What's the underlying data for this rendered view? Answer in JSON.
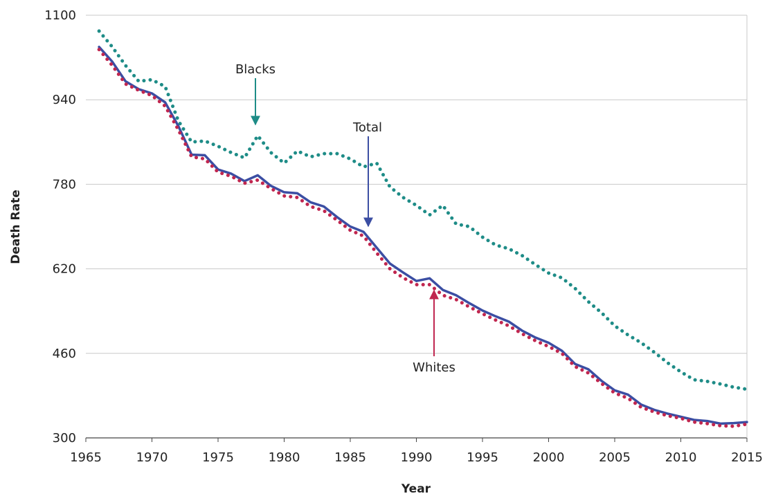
{
  "chart_data": {
    "type": "line",
    "xlabel": "Year",
    "ylabel": "Death Rate",
    "xlim": [
      1965,
      2015
    ],
    "ylim": [
      300,
      1100
    ],
    "x_ticks": [
      "1965",
      "1970",
      "1975",
      "1980",
      "1985",
      "1990",
      "1995",
      "2000",
      "2005",
      "2010",
      "2015"
    ],
    "y_ticks": [
      "300",
      "460",
      "620",
      "780",
      "940",
      "1100"
    ],
    "grid": "horizontal",
    "x": [
      1966,
      1967,
      1968,
      1969,
      1970,
      1971,
      1972,
      1973,
      1974,
      1975,
      1976,
      1977,
      1978,
      1979,
      1980,
      1981,
      1982,
      1983,
      1984,
      1985,
      1986,
      1987,
      1988,
      1989,
      1990,
      1991,
      1992,
      1993,
      1994,
      1995,
      1996,
      1997,
      1998,
      1999,
      2000,
      2001,
      2002,
      2003,
      2004,
      2005,
      2006,
      2007,
      2008,
      2009,
      2010,
      2011,
      2012,
      2013,
      2014,
      2015
    ],
    "series": [
      {
        "name": "Blacks",
        "color": "#1e8c87",
        "style": "dotted",
        "values": [
          1070,
          1040,
          1005,
          975,
          978,
          965,
          900,
          860,
          862,
          852,
          840,
          830,
          872,
          840,
          820,
          843,
          832,
          838,
          838,
          828,
          813,
          820,
          775,
          755,
          740,
          722,
          740,
          705,
          700,
          680,
          665,
          658,
          645,
          628,
          612,
          603,
          583,
          558,
          537,
          512,
          495,
          480,
          462,
          442,
          425,
          410,
          407,
          402,
          396,
          392
        ]
      },
      {
        "name": "Total",
        "color": "#3b4ea3",
        "style": "solid",
        "values": [
          1040,
          1012,
          975,
          960,
          952,
          935,
          890,
          836,
          835,
          808,
          800,
          786,
          797,
          777,
          765,
          763,
          746,
          738,
          718,
          700,
          690,
          660,
          630,
          613,
          597,
          602,
          580,
          570,
          555,
          541,
          530,
          520,
          503,
          490,
          480,
          465,
          440,
          430,
          408,
          390,
          382,
          363,
          353,
          346,
          340,
          334,
          332,
          327,
          328,
          330
        ]
      },
      {
        "name": "Whites",
        "color": "#c0264f",
        "style": "dotted",
        "values": [
          1035,
          1005,
          970,
          958,
          948,
          928,
          883,
          832,
          828,
          803,
          795,
          782,
          788,
          772,
          758,
          755,
          738,
          730,
          712,
          693,
          682,
          650,
          620,
          603,
          590,
          590,
          570,
          562,
          548,
          535,
          523,
          512,
          497,
          484,
          473,
          460,
          435,
          423,
          403,
          385,
          375,
          358,
          349,
          342,
          337,
          330,
          327,
          323,
          322,
          326
        ]
      }
    ],
    "annotations": [
      {
        "text": "Blacks",
        "points_to": {
          "x": 1979,
          "y": 872
        }
      },
      {
        "text": "Total",
        "points_to": {
          "x": 1988,
          "y": 690
        }
      },
      {
        "text": "Whites",
        "points_to": {
          "x": 1993,
          "y": 590
        }
      }
    ]
  }
}
